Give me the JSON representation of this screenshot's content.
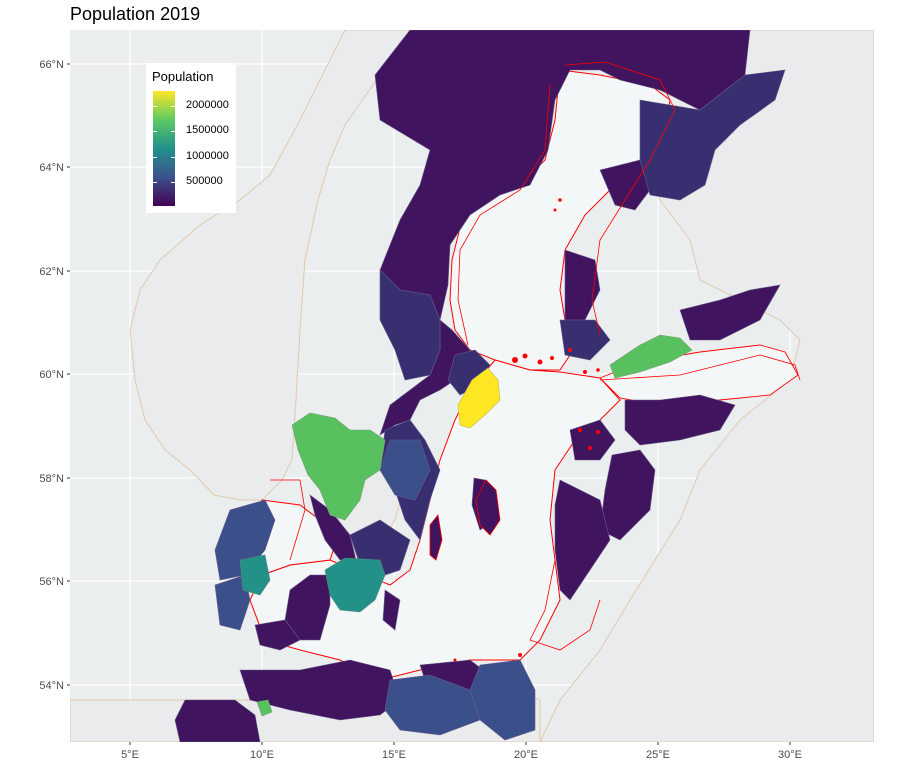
{
  "title": "Population 2019",
  "legend": {
    "title": "Population",
    "ticks": [
      "2000000",
      "1500000",
      "1000000",
      "500000"
    ],
    "colors": [
      "#440154",
      "#3b528b",
      "#21918c",
      "#5ec962",
      "#fde725"
    ]
  },
  "axes": {
    "x_ticks": [
      "5°E",
      "10°E",
      "15°E",
      "20°E",
      "25°E",
      "30°E"
    ],
    "y_ticks": [
      "66°N",
      "64°N",
      "62°N",
      "60°N",
      "58°N",
      "56°N",
      "54°N"
    ]
  },
  "colors": {
    "panel": "#ebeeef",
    "sea": "#f3f7f8",
    "land_outline": "#e1c9ad",
    "eez_outline": "#ff0000",
    "low": "#3e1a5c",
    "mid_low": "#342f72",
    "mid": "#3b4f8b",
    "teal": "#238d86",
    "green": "#5ec962",
    "yellow": "#fde725"
  }
}
